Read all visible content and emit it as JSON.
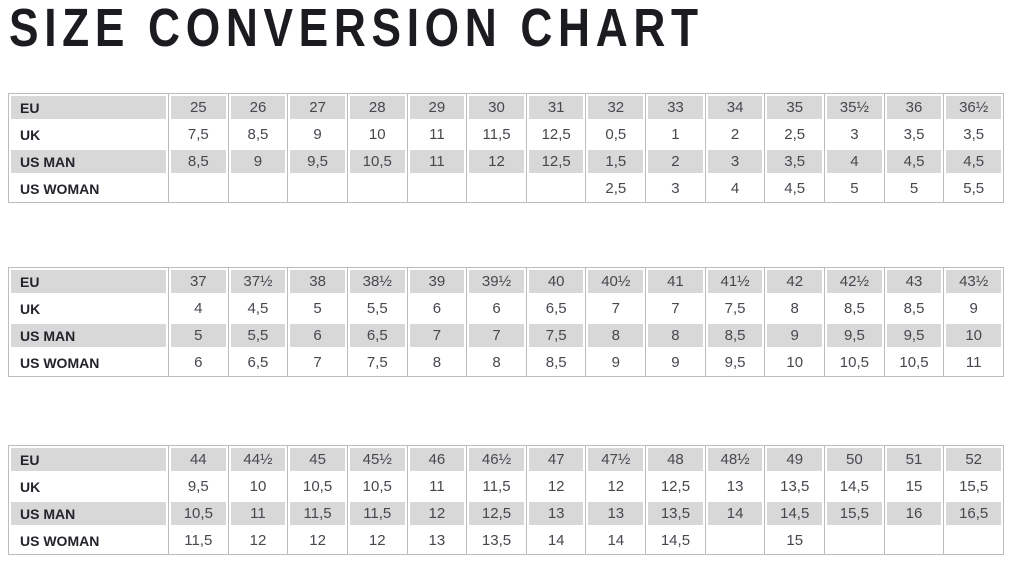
{
  "page": {
    "title": "SIZE CONVERSION CHART"
  },
  "colors": {
    "row_shade": "#d8d8d8",
    "grid_line": "#bcbcbc",
    "title_color": "#1c1c20"
  },
  "row_labels": [
    "EU",
    "UK",
    "US MAN",
    "US WOMAN"
  ],
  "tables": [
    {
      "name": "sizes-eu-25-to-36half",
      "rows": [
        {
          "label": "EU",
          "values": [
            "25",
            "26",
            "27",
            "28",
            "29",
            "30",
            "31",
            "32",
            "33",
            "34",
            "35",
            "35½",
            "36",
            "36½"
          ]
        },
        {
          "label": "UK",
          "values": [
            "7,5",
            "8,5",
            "9",
            "10",
            "11",
            "11,5",
            "12,5",
            "0,5",
            "1",
            "2",
            "2,5",
            "3",
            "3,5",
            "3,5"
          ]
        },
        {
          "label": "US MAN",
          "values": [
            "8,5",
            "9",
            "9,5",
            "10,5",
            "11",
            "12",
            "12,5",
            "1,5",
            "2",
            "3",
            "3,5",
            "4",
            "4,5",
            "4,5"
          ]
        },
        {
          "label": "US WOMAN",
          "values": [
            "",
            "",
            "",
            "",
            "",
            "",
            "",
            "2,5",
            "3",
            "4",
            "4,5",
            "5",
            "5",
            "5,5"
          ]
        }
      ]
    },
    {
      "name": "sizes-eu-37-to-43half",
      "rows": [
        {
          "label": "EU",
          "values": [
            "37",
            "37½",
            "38",
            "38½",
            "39",
            "39½",
            "40",
            "40½",
            "41",
            "41½",
            "42",
            "42½",
            "43",
            "43½"
          ]
        },
        {
          "label": "UK",
          "values": [
            "4",
            "4,5",
            "5",
            "5,5",
            "6",
            "6",
            "6,5",
            "7",
            "7",
            "7,5",
            "8",
            "8,5",
            "8,5",
            "9"
          ]
        },
        {
          "label": "US MAN",
          "values": [
            "5",
            "5,5",
            "6",
            "6,5",
            "7",
            "7",
            "7,5",
            "8",
            "8",
            "8,5",
            "9",
            "9,5",
            "9,5",
            "10"
          ]
        },
        {
          "label": "US WOMAN",
          "values": [
            "6",
            "6,5",
            "7",
            "7,5",
            "8",
            "8",
            "8,5",
            "9",
            "9",
            "9,5",
            "10",
            "10,5",
            "10,5",
            "11"
          ]
        }
      ]
    },
    {
      "name": "sizes-eu-44-to-52",
      "rows": [
        {
          "label": "EU",
          "values": [
            "44",
            "44½",
            "45",
            "45½",
            "46",
            "46½",
            "47",
            "47½",
            "48",
            "48½",
            "49",
            "50",
            "51",
            "52"
          ]
        },
        {
          "label": "UK",
          "values": [
            "9,5",
            "10",
            "10,5",
            "10,5",
            "11",
            "11,5",
            "12",
            "12",
            "12,5",
            "13",
            "13,5",
            "14,5",
            "15",
            "15,5"
          ]
        },
        {
          "label": "US MAN",
          "values": [
            "10,5",
            "11",
            "11,5",
            "11,5",
            "12",
            "12,5",
            "13",
            "13",
            "13,5",
            "14",
            "14,5",
            "15,5",
            "16",
            "16,5"
          ]
        },
        {
          "label": "US WOMAN",
          "values": [
            "11,5",
            "12",
            "12",
            "12",
            "13",
            "13,5",
            "14",
            "14",
            "14,5",
            "",
            "15",
            "",
            "",
            ""
          ]
        }
      ]
    }
  ]
}
